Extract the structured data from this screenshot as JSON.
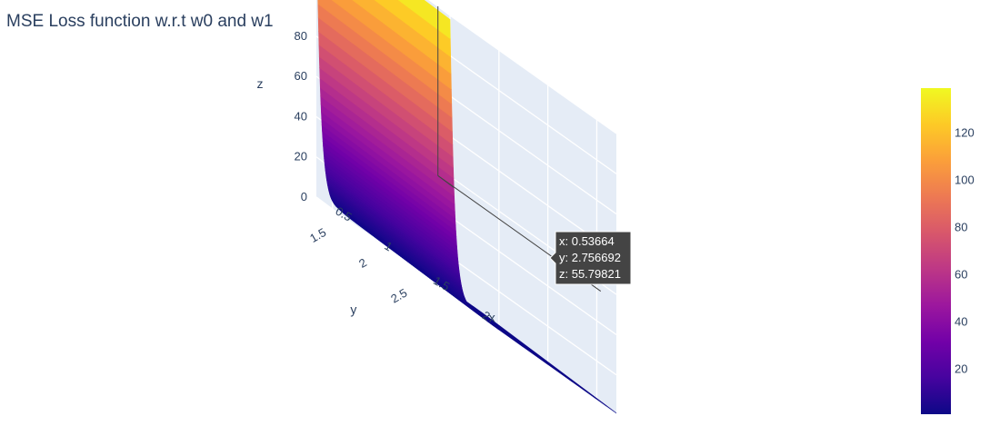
{
  "chart_data": {
    "type": "surface",
    "title": "MSE Loss function w.r.t w0 and w1",
    "axes": {
      "x": {
        "label": "x",
        "ticks": [
          "0.5",
          "1",
          "1.5",
          "2"
        ],
        "range": [
          0.5,
          2.2
        ]
      },
      "y": {
        "label": "y",
        "ticks": [
          "1.5",
          "2",
          "2.5"
        ],
        "range": [
          1.3,
          2.95
        ]
      },
      "z": {
        "label": "z",
        "ticks": [
          "0",
          "20",
          "40",
          "60",
          "80",
          "100",
          "120",
          "140"
        ],
        "range": [
          0,
          140
        ]
      }
    },
    "surface_profile": {
      "x": [
        0.5,
        0.52,
        0.54,
        0.56,
        0.58,
        0.6,
        0.62,
        0.64,
        0.66,
        0.68,
        0.7,
        0.75,
        0.8,
        0.9,
        1.0,
        1.5,
        2.0,
        2.2
      ],
      "z": [
        138,
        90,
        55.8,
        35,
        22,
        14,
        9,
        5.8,
        4,
        3,
        2.4,
        1.8,
        1.4,
        1.1,
        1.0,
        1.0,
        1.0,
        1.0
      ]
    },
    "colorscale": [
      "#0d0887",
      "#46039f",
      "#7201a8",
      "#9c179e",
      "#bd3786",
      "#d8576b",
      "#ed7953",
      "#fb9f3a",
      "#fdca26",
      "#f0f921"
    ],
    "colorbar": {
      "ticks": [
        "20",
        "40",
        "60",
        "80",
        "100",
        "120"
      ],
      "min": 1,
      "max": 139
    },
    "hover": {
      "x": "x: 0.53664",
      "y": "y: 2.756692",
      "z": "z: 55.79821"
    }
  }
}
